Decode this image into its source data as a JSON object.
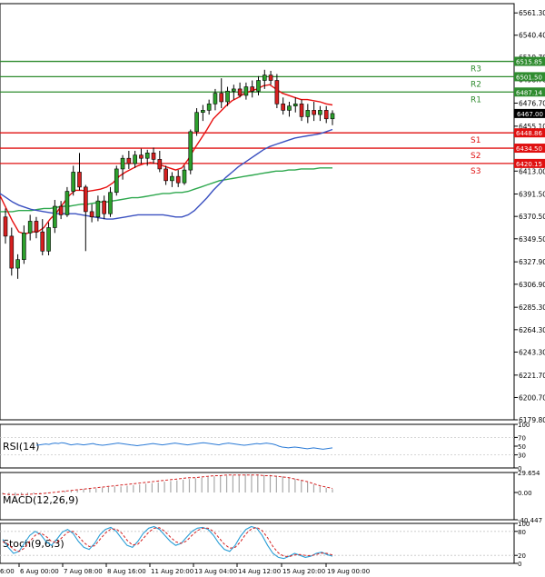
{
  "chart_data": [
    {
      "type": "candlestick",
      "symbol_label": "",
      "y_ticks": [
        "6561.30",
        "6540.40",
        "6519.70",
        "6498.70",
        "6476.70",
        "6455.10",
        "6434.30",
        "6413.00",
        "6391.50",
        "6370.50",
        "6349.50",
        "6327.90",
        "6306.90",
        "6285.30",
        "6264.30",
        "6243.30",
        "6221.70",
        "6200.70",
        "6179.80"
      ],
      "ylim": [
        6179.8,
        6570.0
      ],
      "x_ticks": [
        "6 Aug 00:00",
        "7 Aug 08:00",
        "8 Aug 16:00",
        "11 Aug 20:00",
        "13 Aug 04:00",
        "14 Aug 12:00",
        "15 Aug 20:00",
        "19 Aug 00:00"
      ],
      "x_tick_edge_label": "6:00",
      "current_price": "6467.00",
      "levels": [
        {
          "name": "R3",
          "value": 6515.85,
          "label": "6515.85",
          "color": "#2e8b2e"
        },
        {
          "name": "R2",
          "value": 6501.5,
          "label": "6501.50",
          "color": "#2e8b2e"
        },
        {
          "name": "R1",
          "value": 6487.14,
          "label": "6487.14",
          "color": "#2e8b2e"
        },
        {
          "name": "S1",
          "value": 6448.86,
          "label": "6448.86",
          "color": "#e01010"
        },
        {
          "name": "S2",
          "value": 6434.5,
          "label": "6434.50",
          "color": "#e01010"
        },
        {
          "name": "S3",
          "value": 6420.15,
          "label": "6420.15",
          "color": "#e01010"
        }
      ],
      "candles": [
        {
          "o": 6370,
          "h": 6378,
          "l": 6345,
          "c": 6352
        },
        {
          "o": 6352,
          "h": 6360,
          "l": 6315,
          "c": 6322
        },
        {
          "o": 6322,
          "h": 6335,
          "l": 6312,
          "c": 6330
        },
        {
          "o": 6330,
          "h": 6362,
          "l": 6326,
          "c": 6355
        },
        {
          "o": 6355,
          "h": 6372,
          "l": 6348,
          "c": 6366
        },
        {
          "o": 6366,
          "h": 6370,
          "l": 6350,
          "c": 6356
        },
        {
          "o": 6356,
          "h": 6368,
          "l": 6334,
          "c": 6338
        },
        {
          "o": 6338,
          "h": 6365,
          "l": 6334,
          "c": 6360
        },
        {
          "o": 6360,
          "h": 6386,
          "l": 6355,
          "c": 6380
        },
        {
          "o": 6380,
          "h": 6385,
          "l": 6368,
          "c": 6372
        },
        {
          "o": 6372,
          "h": 6398,
          "l": 6370,
          "c": 6394
        },
        {
          "o": 6394,
          "h": 6418,
          "l": 6390,
          "c": 6412
        },
        {
          "o": 6412,
          "h": 6430,
          "l": 6395,
          "c": 6398
        },
        {
          "o": 6398,
          "h": 6400,
          "l": 6338,
          "c": 6375
        },
        {
          "o": 6375,
          "h": 6382,
          "l": 6365,
          "c": 6370
        },
        {
          "o": 6370,
          "h": 6390,
          "l": 6366,
          "c": 6385
        },
        {
          "o": 6385,
          "h": 6390,
          "l": 6368,
          "c": 6373
        },
        {
          "o": 6373,
          "h": 6398,
          "l": 6370,
          "c": 6393
        },
        {
          "o": 6393,
          "h": 6418,
          "l": 6390,
          "c": 6415
        },
        {
          "o": 6415,
          "h": 6428,
          "l": 6405,
          "c": 6425
        },
        {
          "o": 6425,
          "h": 6432,
          "l": 6415,
          "c": 6420
        },
        {
          "o": 6420,
          "h": 6432,
          "l": 6416,
          "c": 6428
        },
        {
          "o": 6428,
          "h": 6434,
          "l": 6420,
          "c": 6425
        },
        {
          "o": 6425,
          "h": 6433,
          "l": 6418,
          "c": 6430
        },
        {
          "o": 6430,
          "h": 6435,
          "l": 6420,
          "c": 6424
        },
        {
          "o": 6424,
          "h": 6432,
          "l": 6412,
          "c": 6415
        },
        {
          "o": 6415,
          "h": 6418,
          "l": 6400,
          "c": 6404
        },
        {
          "o": 6404,
          "h": 6412,
          "l": 6398,
          "c": 6408
        },
        {
          "o": 6408,
          "h": 6414,
          "l": 6398,
          "c": 6402
        },
        {
          "o": 6402,
          "h": 6418,
          "l": 6400,
          "c": 6414
        },
        {
          "o": 6414,
          "h": 6452,
          "l": 6410,
          "c": 6450
        },
        {
          "o": 6450,
          "h": 6472,
          "l": 6446,
          "c": 6468
        },
        {
          "o": 6468,
          "h": 6475,
          "l": 6460,
          "c": 6470
        },
        {
          "o": 6470,
          "h": 6480,
          "l": 6466,
          "c": 6476
        },
        {
          "o": 6476,
          "h": 6490,
          "l": 6470,
          "c": 6486
        },
        {
          "o": 6486,
          "h": 6500,
          "l": 6472,
          "c": 6478
        },
        {
          "o": 6478,
          "h": 6492,
          "l": 6474,
          "c": 6488
        },
        {
          "o": 6488,
          "h": 6494,
          "l": 6480,
          "c": 6490
        },
        {
          "o": 6490,
          "h": 6496,
          "l": 6482,
          "c": 6484
        },
        {
          "o": 6484,
          "h": 6496,
          "l": 6480,
          "c": 6492
        },
        {
          "o": 6492,
          "h": 6498,
          "l": 6482,
          "c": 6488
        },
        {
          "o": 6488,
          "h": 6502,
          "l": 6484,
          "c": 6498
        },
        {
          "o": 6498,
          "h": 6508,
          "l": 6490,
          "c": 6503
        },
        {
          "o": 6503,
          "h": 6507,
          "l": 6494,
          "c": 6498
        },
        {
          "o": 6498,
          "h": 6504,
          "l": 6472,
          "c": 6476
        },
        {
          "o": 6476,
          "h": 6482,
          "l": 6466,
          "c": 6470
        },
        {
          "o": 6470,
          "h": 6478,
          "l": 6464,
          "c": 6474
        },
        {
          "o": 6474,
          "h": 6482,
          "l": 6468,
          "c": 6476
        },
        {
          "o": 6476,
          "h": 6480,
          "l": 6460,
          "c": 6464
        },
        {
          "o": 6464,
          "h": 6476,
          "l": 6458,
          "c": 6470
        },
        {
          "o": 6470,
          "h": 6478,
          "l": 6460,
          "c": 6466
        },
        {
          "o": 6466,
          "h": 6474,
          "l": 6460,
          "c": 6470
        },
        {
          "o": 6470,
          "h": 6474,
          "l": 6458,
          "c": 6462
        },
        {
          "o": 6462,
          "h": 6470,
          "l": 6456,
          "c": 6467
        }
      ],
      "ma_fast": [
        6390,
        6378,
        6366,
        6356,
        6354,
        6356,
        6356,
        6360,
        6368,
        6374,
        6382,
        6390,
        6395,
        6395,
        6394,
        6395,
        6396,
        6398,
        6402,
        6408,
        6412,
        6415,
        6418,
        6420,
        6421,
        6420,
        6418,
        6416,
        6414,
        6416,
        6424,
        6434,
        6443,
        6452,
        6462,
        6468,
        6474,
        6479,
        6482,
        6486,
        6488,
        6490,
        6493,
        6494,
        6490,
        6486,
        6484,
        6482,
        6480,
        6480,
        6479,
        6478,
        6476,
        6475
      ],
      "ma_slow": [
        6392,
        6388,
        6384,
        6381,
        6379,
        6377,
        6376,
        6375,
        6374,
        6373,
        6373,
        6373,
        6373,
        6372,
        6371,
        6370,
        6369,
        6368,
        6368,
        6369,
        6370,
        6371,
        6372,
        6372,
        6372,
        6372,
        6372,
        6371,
        6370,
        6370,
        6372,
        6376,
        6382,
        6388,
        6395,
        6401,
        6407,
        6412,
        6417,
        6421,
        6425,
        6429,
        6433,
        6436,
        6438,
        6440,
        6442,
        6444,
        6445,
        6446,
        6447,
        6448,
        6450,
        6452
      ],
      "ma_long": [
        6375,
        6375,
        6375,
        6376,
        6376,
        6376,
        6377,
        6378,
        6378,
        6379,
        6380,
        6380,
        6381,
        6382,
        6382,
        6383,
        6384,
        6384,
        6385,
        6386,
        6387,
        6388,
        6388,
        6389,
        6390,
        6391,
        6392,
        6392,
        6393,
        6393,
        6394,
        6396,
        6398,
        6400,
        6402,
        6404,
        6405,
        6406,
        6407,
        6408,
        6409,
        6410,
        6411,
        6412,
        6413,
        6413,
        6414,
        6414,
        6415,
        6415,
        6415,
        6416,
        6416,
        6416
      ],
      "colors": {
        "up": "#2ca02c",
        "down": "#d62020",
        "ma_fast": "#e81010",
        "ma_slow": "#3a50c0",
        "ma_long": "#2ea84e"
      }
    },
    {
      "type": "line",
      "title": "RSI(14)",
      "y_ticks": [
        "100",
        "70",
        "50",
        "30",
        "0"
      ],
      "ylim": [
        0,
        100
      ],
      "values": [
        52,
        53,
        54,
        55,
        54,
        56,
        57,
        56,
        58,
        57,
        55,
        53,
        54,
        55,
        54,
        53,
        54,
        55,
        56,
        54,
        53,
        52,
        53,
        54,
        55,
        56,
        57,
        56,
        55,
        54,
        53,
        52,
        51,
        52,
        53,
        54,
        55,
        56,
        55,
        54,
        53,
        54,
        55,
        56,
        57,
        56,
        55,
        54,
        53,
        54,
        55,
        56,
        57,
        58,
        57,
        56,
        55,
        54,
        53,
        55,
        56,
        57,
        56,
        55,
        54,
        53,
        52,
        53,
        54,
        55,
        56,
        55,
        56,
        57,
        56,
        55,
        53,
        50,
        48,
        47,
        46,
        47,
        48,
        47,
        46,
        45,
        44,
        45,
        46,
        45,
        44,
        43,
        44,
        45,
        46
      ],
      "color": "#2a7ad6"
    },
    {
      "type": "histogram_line",
      "title": "MACD(12,26,9)",
      "y_ticks": [
        "29.654",
        "0.00",
        "-40.447"
      ],
      "ylim": [
        -40.447,
        29.654
      ],
      "histogram": [
        -3,
        -4,
        -5,
        -4,
        -3,
        -2,
        -2,
        -1,
        0,
        1,
        2,
        3,
        4,
        5,
        6,
        6,
        7,
        8,
        9,
        9,
        10,
        11,
        12,
        13,
        14,
        15,
        16,
        17,
        18,
        19,
        20,
        21,
        22,
        23,
        24,
        25,
        25,
        26,
        26,
        27,
        27,
        27,
        26,
        26,
        25,
        24,
        22,
        20,
        18,
        15,
        12,
        9,
        7,
        5
      ],
      "signal": [
        -2,
        -3,
        -3,
        -3,
        -3,
        -2,
        -2,
        -1,
        0,
        1,
        2,
        3,
        4,
        5,
        6,
        7,
        8,
        9,
        10,
        11,
        12,
        13,
        14,
        15,
        16,
        17,
        18,
        19,
        20,
        21,
        22,
        22,
        23,
        24,
        25,
        25,
        26,
        26,
        26,
        26,
        26,
        26,
        25,
        25,
        24,
        23,
        22,
        20,
        18,
        16,
        13,
        10,
        8,
        6
      ],
      "hist_color": "#a8a8a8",
      "signal_color": "#d42020"
    },
    {
      "type": "line",
      "title": "Stoch(9,6,3)",
      "y_ticks": [
        "100",
        "80",
        "20",
        "0"
      ],
      "ylim": [
        0,
        100
      ],
      "k": [
        60,
        40,
        25,
        30,
        50,
        70,
        80,
        72,
        55,
        45,
        60,
        78,
        85,
        75,
        55,
        40,
        35,
        50,
        72,
        85,
        90,
        80,
        62,
        45,
        40,
        55,
        75,
        88,
        92,
        85,
        70,
        55,
        45,
        50,
        65,
        80,
        88,
        90,
        85,
        70,
        50,
        35,
        30,
        45,
        68,
        85,
        92,
        88,
        70,
        45,
        25,
        15,
        12,
        18,
        25,
        20,
        15,
        18,
        25,
        28,
        22,
        18
      ],
      "d": [
        55,
        48,
        35,
        30,
        38,
        55,
        70,
        76,
        68,
        55,
        52,
        65,
        78,
        80,
        68,
        52,
        42,
        44,
        60,
        76,
        86,
        86,
        76,
        58,
        46,
        48,
        62,
        78,
        88,
        89,
        80,
        66,
        54,
        50,
        56,
        70,
        82,
        88,
        88,
        80,
        64,
        48,
        38,
        40,
        54,
        74,
        86,
        90,
        82,
        64,
        42,
        26,
        18,
        17,
        21,
        22,
        20,
        19,
        22,
        26,
        25,
        21
      ],
      "k_color": "#2a9ed6",
      "d_color": "#d42020"
    }
  ]
}
